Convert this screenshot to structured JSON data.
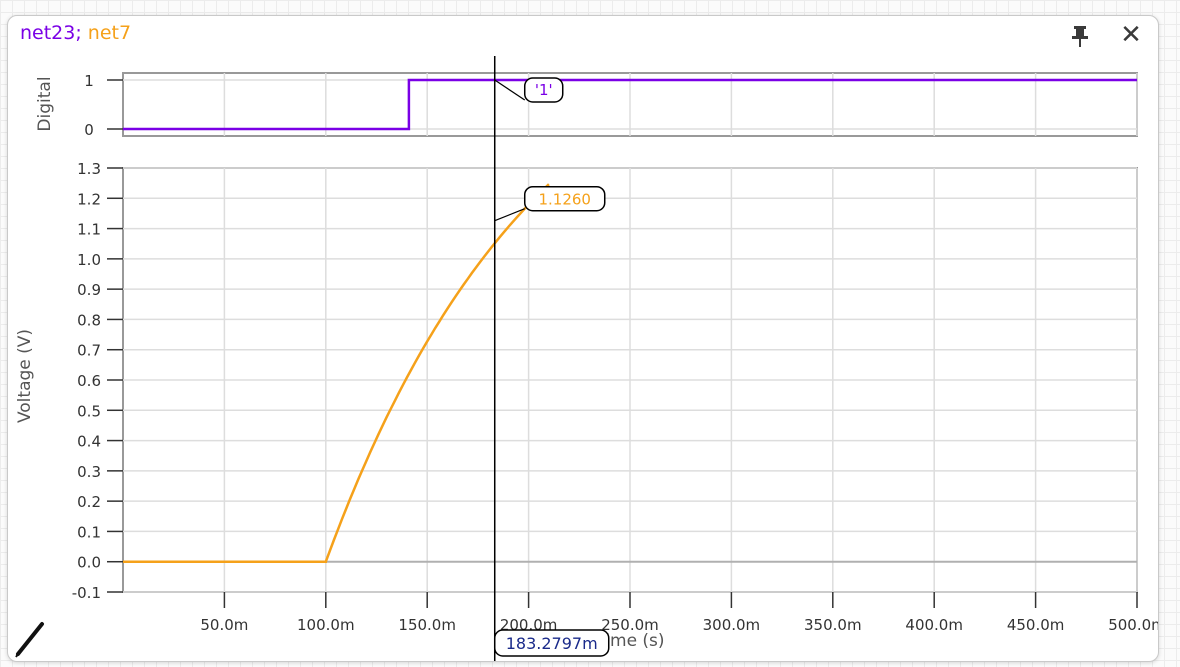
{
  "window": {
    "title_net1": "net23",
    "title_separator": ";",
    "title_net2": " net7",
    "net1_color": "#7a00e6",
    "net2_color": "#f5a11a",
    "pin_icon": "pin-icon",
    "close_icon": "close-icon",
    "close_glyph": "✕",
    "pencil_icon": "pencil-icon"
  },
  "chart_data": [
    {
      "type": "line",
      "ylabel": "Digital",
      "y_ticks": [
        "0",
        "1"
      ],
      "ylim": [
        0,
        1
      ],
      "series": [
        {
          "name": "net23",
          "color": "#7a00e6",
          "x": [
            0,
            0.141,
            0.141,
            0.5
          ],
          "y": [
            0,
            0,
            1,
            1
          ]
        }
      ],
      "cursor_label": "'1'"
    },
    {
      "type": "line",
      "ylabel": "Voltage (V)",
      "xlabel": "Time (s)",
      "ylim": [
        -0.1,
        1.3
      ],
      "xlim": [
        0,
        0.5
      ],
      "y_ticks": [
        "-0.1",
        "0.0",
        "0.1",
        "0.2",
        "0.3",
        "0.4",
        "0.5",
        "0.6",
        "0.7",
        "0.8",
        "0.9",
        "1.0",
        "1.1",
        "1.2",
        "1.3"
      ],
      "x_ticks": [
        "50.0m",
        "100.0m",
        "150.0m",
        "200.0m",
        "250.0m",
        "300.0m",
        "350.0m",
        "400.0m",
        "450.0m",
        "500.0m"
      ],
      "series": [
        {
          "name": "net7",
          "color": "#f5a11a",
          "x": [
            0,
            0.1,
            0.12,
            0.14,
            0.16,
            0.1833,
            0.2,
            0.21
          ],
          "y": [
            0,
            0,
            0.32,
            0.62,
            0.88,
            1.126,
            1.25,
            1.32
          ]
        }
      ],
      "cursor_label": "1.1260"
    }
  ],
  "cursor": {
    "x": 0.1833,
    "x_label": "183.2797m"
  }
}
